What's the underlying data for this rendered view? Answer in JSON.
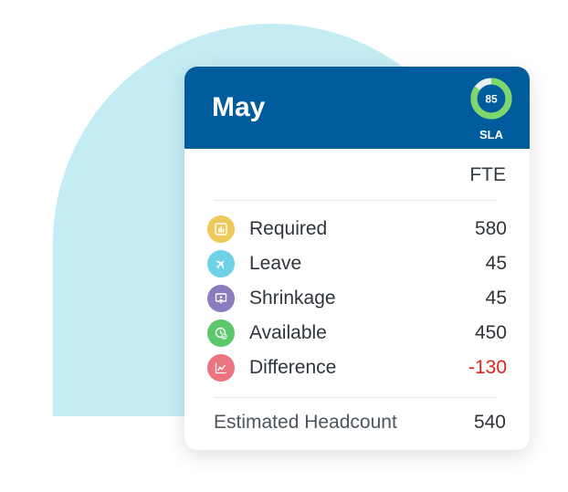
{
  "card": {
    "month": "May",
    "sla": {
      "value": "85",
      "label": "SLA",
      "fraction": 0.85
    },
    "column_header": "FTE",
    "rows": [
      {
        "label": "Required",
        "value": "580",
        "icon": "bar-chart-icon",
        "color": "#eec95b"
      },
      {
        "label": "Leave",
        "value": "45",
        "icon": "airplane-icon",
        "color": "#6dd2e6"
      },
      {
        "label": "Shrinkage",
        "value": "45",
        "icon": "presentation-icon",
        "color": "#8a7cbf"
      },
      {
        "label": "Available",
        "value": "450",
        "icon": "clock-check-icon",
        "color": "#5bc96b"
      },
      {
        "label": "Difference",
        "value": "-130",
        "icon": "trend-line-icon",
        "color": "#ec7481"
      }
    ],
    "estimated_headcount": {
      "label": "Estimated Headcount",
      "value": "540"
    }
  },
  "colors": {
    "header_bg": "#015c9e",
    "backdrop": "#c4ecf3",
    "negative": "#e2231a",
    "sla_green": "#7fd66a"
  }
}
